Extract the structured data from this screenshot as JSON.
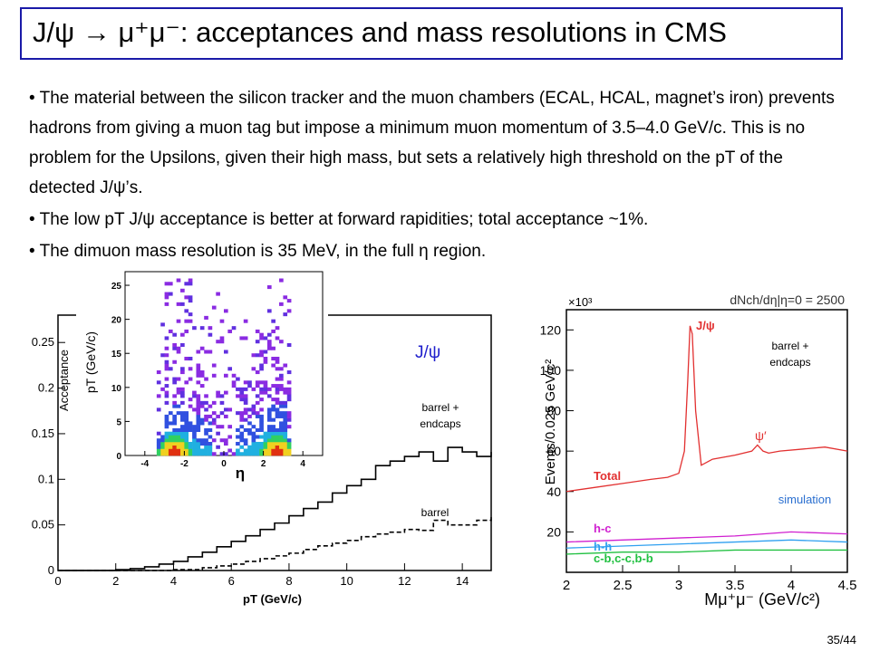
{
  "slide": {
    "title": "J/ψ → μ⁺μ⁻: acceptances and mass resolutions in CMS",
    "bullets": [
      "The material between the silicon tracker and the muon chambers (ECAL, HCAL, magnet’s iron) prevents hadrons from giving a muon tag but impose a minimum muon momentum of 3.5–4.0 GeV/c. This is no problem for the Upsilons, given their high mass, but sets a relatively high threshold on the pT of the detected J/ψ’s.",
      "The low pT J/ψ acceptance is better at forward rapidities; total acceptance ~1%.",
      "The dimuon mass resolution is 35 MeV, in the full η region."
    ],
    "page_number": "35/44"
  },
  "chart_data": [
    {
      "type": "line",
      "xlabel": "pT (GeV/c)",
      "ylabel": "Acceptance",
      "xlim": [
        0,
        15
      ],
      "ylim": [
        0,
        0.28
      ],
      "xticks": [
        "0",
        "2",
        "4",
        "6",
        "8",
        "10",
        "12",
        "14"
      ],
      "yticks": [
        "0",
        "0.05",
        "0.1",
        "0.15",
        "0.2",
        "0.25"
      ],
      "label": "J/ψ",
      "series": [
        {
          "name": "barrel + endcaps",
          "style": "solid",
          "x": [
            0,
            1,
            2,
            2.5,
            3,
            3.5,
            4,
            4.5,
            5,
            5.5,
            6,
            6.5,
            7,
            7.5,
            8,
            8.5,
            9,
            9.5,
            10,
            10.5,
            11,
            11.5,
            12,
            12.5,
            13,
            13.5,
            14,
            14.5,
            15
          ],
          "y": [
            0,
            0,
            0.001,
            0.002,
            0.004,
            0.007,
            0.01,
            0.015,
            0.02,
            0.026,
            0.032,
            0.038,
            0.045,
            0.052,
            0.06,
            0.068,
            0.075,
            0.085,
            0.093,
            0.1,
            0.115,
            0.12,
            0.125,
            0.13,
            0.12,
            0.135,
            0.13,
            0.125,
            0.13
          ]
        },
        {
          "name": "barrel",
          "style": "dashed",
          "x": [
            0,
            2,
            3,
            4,
            5,
            5.5,
            6,
            6.5,
            7,
            7.5,
            8,
            8.5,
            9,
            9.5,
            10,
            10.5,
            11,
            11.5,
            12,
            12.5,
            13,
            13.5,
            14,
            14.5,
            15
          ],
          "y": [
            0,
            0,
            0,
            0.001,
            0.003,
            0.005,
            0.007,
            0.01,
            0.013,
            0.016,
            0.019,
            0.023,
            0.027,
            0.03,
            0.033,
            0.037,
            0.04,
            0.042,
            0.045,
            0.044,
            0.055,
            0.05,
            0.05,
            0.055,
            0.06
          ]
        }
      ],
      "annotations": [
        "barrel + endcaps",
        "barrel"
      ]
    },
    {
      "type": "heatmap",
      "xlabel": "η",
      "ylabel": "pT (GeV/c)",
      "xlim": [
        -5,
        5
      ],
      "ylim": [
        0,
        27
      ],
      "xticks": [
        "-4",
        "-2",
        "0",
        "2",
        "4"
      ],
      "yticks": [
        "0",
        "5",
        "10",
        "15",
        "20",
        "25"
      ],
      "hotspots": [
        {
          "x": -2.6,
          "y": 1.5
        },
        {
          "x": 2.6,
          "y": 1.5
        }
      ]
    },
    {
      "type": "line",
      "xlabel": "Mμ⁺μ⁻ (GeV/c²)",
      "ylabel": "Events/0.025 GeV/c²",
      "multiplier": "×10³",
      "header": "dNch/dη|η=0 = 2500",
      "xlim": [
        2,
        4.5
      ],
      "ylim": [
        0,
        130
      ],
      "xticks": [
        "2",
        "2.5",
        "3",
        "3.5",
        "4",
        "4.5"
      ],
      "yticks": [
        "20",
        "40",
        "60",
        "80",
        "100",
        "120"
      ],
      "annotations": [
        "barrel + endcaps",
        "simulation",
        "J/ψ",
        "ψ′"
      ],
      "series": [
        {
          "name": "Total",
          "color": "#e23030",
          "x": [
            2,
            2.25,
            2.5,
            2.75,
            2.9,
            3.0,
            3.05,
            3.08,
            3.1,
            3.12,
            3.15,
            3.2,
            3.3,
            3.5,
            3.65,
            3.7,
            3.75,
            3.8,
            3.9,
            4.1,
            4.3,
            4.5
          ],
          "y": [
            40,
            42,
            44,
            46,
            47,
            49,
            60,
            95,
            122,
            118,
            80,
            53,
            56,
            58,
            60,
            63,
            60,
            59,
            60,
            61,
            62,
            60
          ]
        },
        {
          "name": "h-c",
          "color": "#d020d0",
          "x": [
            2,
            2.5,
            3,
            3.5,
            4,
            4.5
          ],
          "y": [
            15,
            16,
            17,
            18,
            20,
            19
          ]
        },
        {
          "name": "h-h",
          "color": "#30a0f0",
          "x": [
            2,
            2.5,
            3,
            3.5,
            4,
            4.5
          ],
          "y": [
            12,
            13,
            14,
            15,
            16,
            15
          ]
        },
        {
          "name": "c-b,c-c,b-b",
          "color": "#20c040",
          "x": [
            2,
            2.5,
            3,
            3.5,
            4,
            4.5
          ],
          "y": [
            9,
            10,
            10,
            11,
            11,
            11
          ]
        }
      ]
    }
  ]
}
